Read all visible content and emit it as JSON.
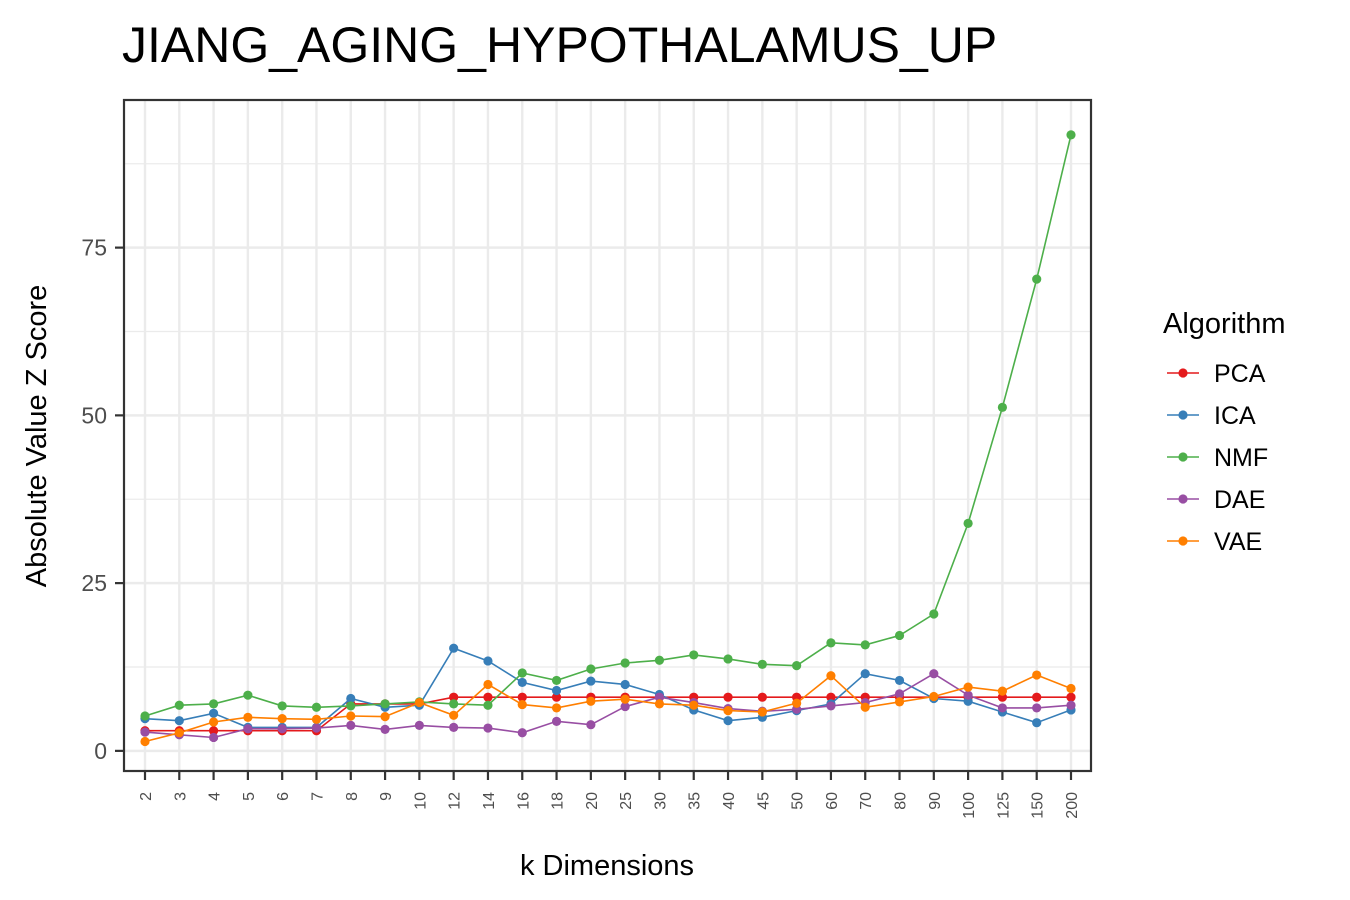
{
  "chart_data": {
    "type": "line",
    "title": "JIANG_AGING_HYPOTHALAMUS_UP",
    "xlabel": "k Dimensions",
    "ylabel": "Absolute Value Z Score",
    "categories": [
      "2",
      "3",
      "4",
      "5",
      "6",
      "7",
      "8",
      "9",
      "10",
      "12",
      "14",
      "16",
      "18",
      "20",
      "25",
      "30",
      "35",
      "40",
      "45",
      "50",
      "60",
      "70",
      "80",
      "90",
      "100",
      "125",
      "150",
      "200"
    ],
    "ylim": [
      -3,
      97
    ],
    "yticks": [
      0,
      25,
      50,
      75
    ],
    "grid": true,
    "legend": {
      "title": "Algorithm",
      "position": "right"
    },
    "series": [
      {
        "name": "PCA",
        "color": "#e41a1c",
        "values": [
          3,
          3,
          3,
          3,
          3,
          3,
          7,
          7,
          7,
          8,
          8,
          8,
          8,
          8,
          8,
          8,
          8,
          8,
          8,
          8,
          8,
          8,
          8,
          8,
          8,
          8,
          8,
          8
        ]
      },
      {
        "name": "ICA",
        "color": "#377eb8",
        "values": [
          4.8,
          4.5,
          5.6,
          3.5,
          3.5,
          3.5,
          7.8,
          6.5,
          6.8,
          15.3,
          13.4,
          10.2,
          9.0,
          10.4,
          9.9,
          8.4,
          6.1,
          4.5,
          5.0,
          6.0,
          7.0,
          11.5,
          10.5,
          7.8,
          7.4,
          5.8,
          4.2,
          6.1
        ]
      },
      {
        "name": "NMF",
        "color": "#4daf4a",
        "values": [
          5.2,
          6.8,
          7.0,
          8.3,
          6.7,
          6.5,
          6.7,
          7.0,
          7.3,
          7.0,
          6.8,
          11.6,
          10.5,
          12.2,
          13.1,
          13.5,
          14.3,
          13.7,
          12.9,
          12.7,
          16.1,
          15.8,
          17.2,
          20.4,
          33.9,
          51.2,
          70.3,
          91.8
        ]
      },
      {
        "name": "DAE",
        "color": "#984ea3",
        "values": [
          2.8,
          2.4,
          2.0,
          3.3,
          3.3,
          3.4,
          3.8,
          3.2,
          3.8,
          3.5,
          3.4,
          2.7,
          4.4,
          3.9,
          6.6,
          8.0,
          7.2,
          6.3,
          5.9,
          6.2,
          6.7,
          7.2,
          8.5,
          11.5,
          8.3,
          6.4,
          6.4,
          6.8
        ]
      },
      {
        "name": "VAE",
        "color": "#ff7f00",
        "values": [
          1.4,
          2.7,
          4.3,
          5.0,
          4.8,
          4.7,
          5.2,
          5.1,
          7.2,
          5.3,
          9.9,
          6.9,
          6.4,
          7.4,
          7.7,
          7.0,
          6.8,
          6.0,
          5.8,
          7.1,
          11.2,
          6.5,
          7.3,
          8.1,
          9.5,
          8.9,
          11.3,
          9.3
        ]
      }
    ]
  }
}
